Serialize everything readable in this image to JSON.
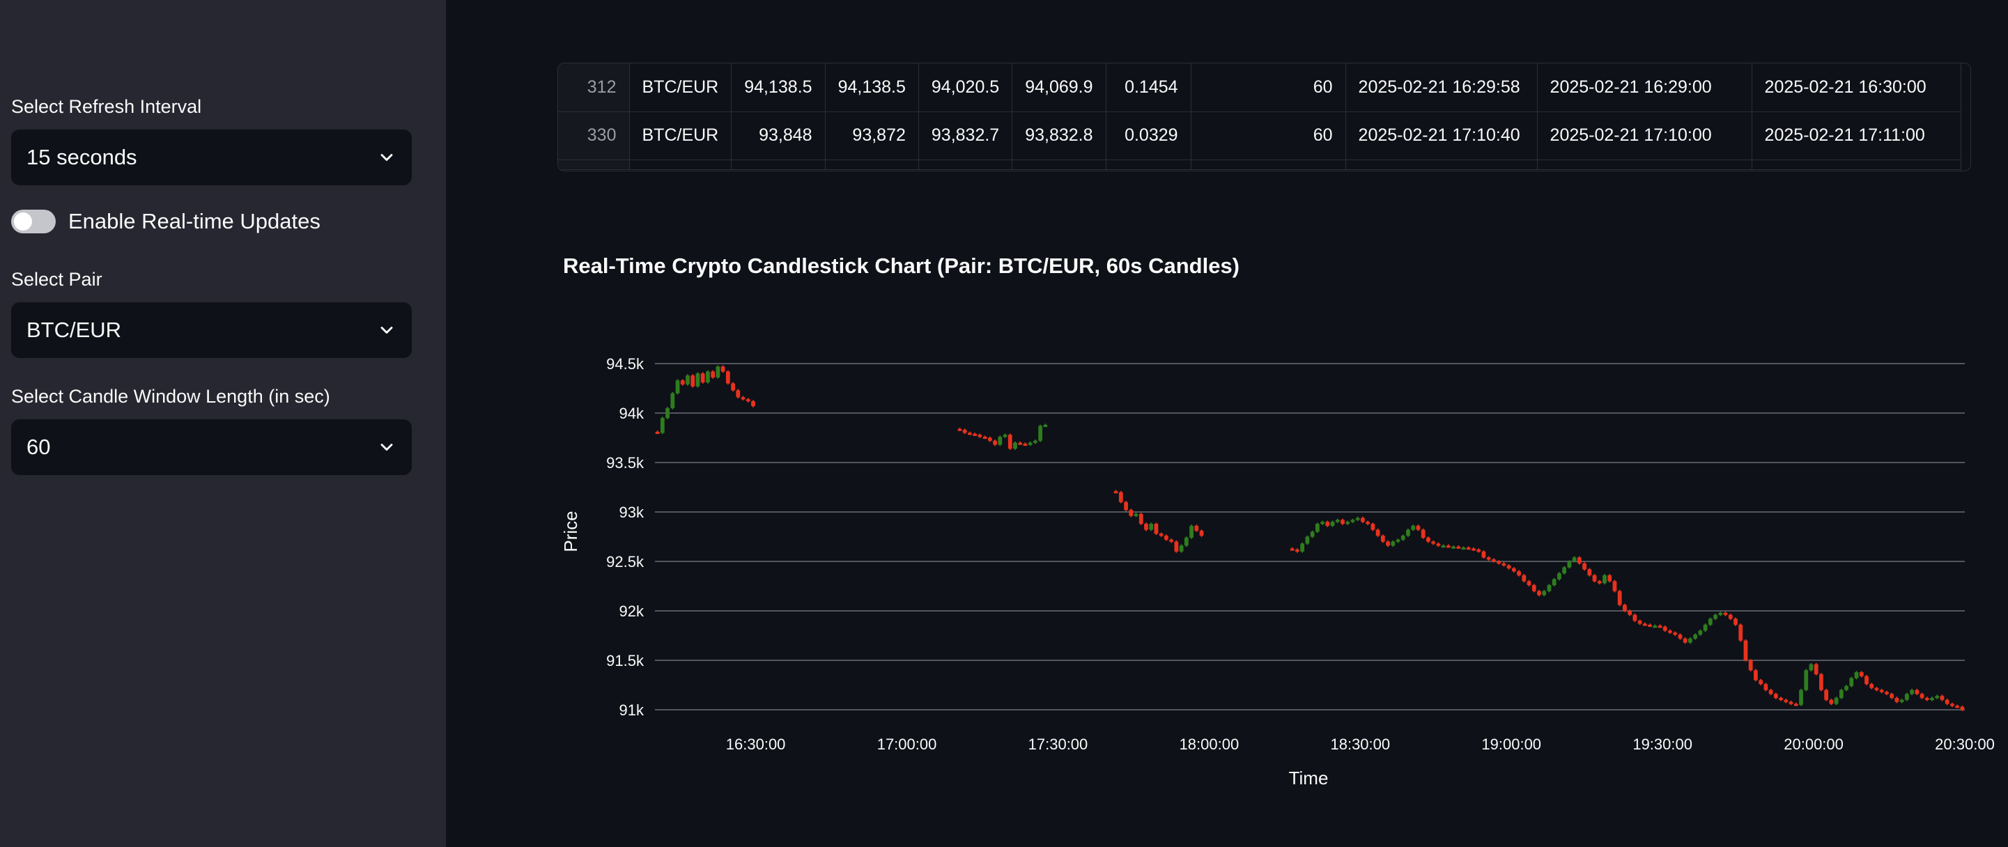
{
  "sidebar": {
    "refresh_label": "Select Refresh Interval",
    "refresh_value": "15 seconds",
    "realtime_label": "Enable Real-time Updates",
    "pair_label": "Select Pair",
    "pair_value": "BTC/EUR",
    "window_label": "Select Candle Window Length (in sec)",
    "window_value": "60"
  },
  "table": {
    "rows": [
      [
        "312",
        "BTC/EUR",
        "94,138.5",
        "94,138.5",
        "94,020.5",
        "94,069.9",
        "0.1454",
        "60",
        "2025-02-21 16:29:58",
        "2025-02-21 16:29:00",
        "2025-02-21 16:30:00"
      ],
      [
        "330",
        "BTC/EUR",
        "93,848",
        "93,872",
        "93,832.7",
        "93,832.8",
        "0.0329",
        "60",
        "2025-02-21 17:10:40",
        "2025-02-21 17:10:00",
        "2025-02-21 17:11:00"
      ]
    ]
  },
  "chart_data": {
    "type": "candlestick",
    "title": "Real-Time Crypto Candlestick Chart (Pair: BTC/EUR, 60s Candles)",
    "xlabel": "Time",
    "ylabel": "Price",
    "ylim": [
      91000,
      94500
    ],
    "yticks": [
      91000,
      91500,
      92000,
      92500,
      93000,
      93500,
      94000,
      94500
    ],
    "ytick_labels": [
      "91k",
      "91.5k",
      "92k",
      "92.5k",
      "93k",
      "93.5k",
      "94k",
      "94.5k"
    ],
    "xlim": [
      "16:10:00",
      "20:30:00"
    ],
    "xticks": [
      "16:30:00",
      "17:00:00",
      "17:30:00",
      "18:00:00",
      "18:30:00",
      "19:00:00",
      "19:30:00",
      "20:00:00",
      "20:30:00"
    ],
    "grid": true,
    "colors": {
      "up": "#2e7d1f",
      "down": "#e8321e"
    },
    "series": [
      {
        "x": [
          "16:10",
          "16:11",
          "16:12",
          "16:13",
          "16:14",
          "16:15",
          "16:16",
          "16:17",
          "16:18",
          "16:19",
          "16:20",
          "16:21",
          "16:22",
          "16:23",
          "16:24",
          "16:25",
          "16:26",
          "16:27",
          "16:28",
          "16:29"
        ],
        "close": [
          93800,
          93950,
          94050,
          94200,
          94330,
          94290,
          94380,
          94270,
          94400,
          94310,
          94420,
          94360,
          94470,
          94420,
          94300,
          94230,
          94160,
          94140,
          94120,
          94070
        ]
      },
      {
        "x": [
          "17:10",
          "17:11",
          "17:12",
          "17:13",
          "17:14",
          "17:15",
          "17:16",
          "17:17",
          "17:18",
          "17:19",
          "17:20",
          "17:21",
          "17:22",
          "17:23",
          "17:24",
          "17:25",
          "17:26",
          "17:27"
        ],
        "close": [
          93830,
          93800,
          93790,
          93780,
          93760,
          93750,
          93720,
          93680,
          93760,
          93780,
          93640,
          93700,
          93690,
          93680,
          93700,
          93720,
          93870,
          93880
        ]
      },
      {
        "x": [
          "17:41",
          "17:42",
          "17:43",
          "17:44",
          "17:45",
          "17:46",
          "17:47",
          "17:48",
          "17:49",
          "17:50",
          "17:51",
          "17:52",
          "17:53",
          "17:54",
          "17:55",
          "17:56",
          "17:57",
          "17:58"
        ],
        "close": [
          93200,
          93100,
          93020,
          92960,
          92980,
          92880,
          92820,
          92880,
          92780,
          92760,
          92720,
          92700,
          92600,
          92660,
          92740,
          92860,
          92810,
          92760
        ]
      },
      {
        "x": [
          "18:16",
          "18:17",
          "18:18",
          "18:19",
          "18:20",
          "18:21",
          "18:22",
          "18:23",
          "18:24",
          "18:25",
          "18:26",
          "18:27",
          "18:28",
          "18:29",
          "18:30",
          "18:31",
          "18:32",
          "18:33",
          "18:34",
          "18:35",
          "18:36",
          "18:37",
          "18:38",
          "18:39",
          "18:40",
          "18:41",
          "18:42",
          "18:43",
          "18:44",
          "18:45",
          "18:46",
          "18:47",
          "18:48",
          "18:49",
          "18:50",
          "18:51",
          "18:52",
          "18:53",
          "18:54",
          "18:55",
          "18:56",
          "18:57",
          "18:58",
          "18:59",
          "19:00",
          "19:01",
          "19:02",
          "19:03",
          "19:04",
          "19:05",
          "19:06",
          "19:07",
          "19:08",
          "19:09",
          "19:10",
          "19:11",
          "19:12",
          "19:13",
          "19:14",
          "19:15",
          "19:16",
          "19:17",
          "19:18",
          "19:19",
          "19:20",
          "19:21",
          "19:22",
          "19:23",
          "19:24",
          "19:25",
          "19:26",
          "19:27",
          "19:28",
          "19:29",
          "19:30",
          "19:31",
          "19:32",
          "19:33",
          "19:34",
          "19:35",
          "19:36",
          "19:37",
          "19:38",
          "19:39",
          "19:40",
          "19:41",
          "19:42",
          "19:43",
          "19:44",
          "19:45",
          "19:46",
          "19:47",
          "19:48",
          "19:49",
          "19:50",
          "19:51",
          "19:52",
          "19:53",
          "19:54",
          "19:55",
          "19:56",
          "19:57",
          "19:58",
          "19:59",
          "20:00",
          "20:01",
          "20:02",
          "20:03",
          "20:04",
          "20:05",
          "20:06",
          "20:07",
          "20:08",
          "20:09",
          "20:10",
          "20:11",
          "20:12",
          "20:13",
          "20:14",
          "20:15",
          "20:16",
          "20:17",
          "20:18",
          "20:19",
          "20:20",
          "20:21",
          "20:22",
          "20:23",
          "20:24",
          "20:25",
          "20:26",
          "20:27",
          "20:28",
          "20:29"
        ],
        "close": [
          92620,
          92600,
          92680,
          92750,
          92800,
          92880,
          92900,
          92860,
          92900,
          92920,
          92880,
          92900,
          92920,
          92940,
          92900,
          92880,
          92820,
          92760,
          92700,
          92660,
          92700,
          92720,
          92760,
          92820,
          92860,
          92820,
          92740,
          92700,
          92680,
          92660,
          92660,
          92650,
          92650,
          92640,
          92640,
          92630,
          92620,
          92600,
          92540,
          92520,
          92500,
          92480,
          92460,
          92430,
          92400,
          92360,
          92300,
          92260,
          92200,
          92160,
          92200,
          92260,
          92320,
          92380,
          92440,
          92500,
          92540,
          92480,
          92420,
          92360,
          92300,
          92280,
          92360,
          92300,
          92200,
          92060,
          92000,
          91960,
          91900,
          91870,
          91860,
          91850,
          91850,
          91840,
          91800,
          91780,
          91760,
          91720,
          91680,
          91720,
          91760,
          91800,
          91860,
          91920,
          91960,
          91980,
          91960,
          91920,
          91860,
          91700,
          91500,
          91400,
          91300,
          91260,
          91200,
          91160,
          91120,
          91100,
          91080,
          91060,
          91050,
          91200,
          91400,
          91460,
          91360,
          91200,
          91100,
          91060,
          91120,
          91200,
          91240,
          91320,
          91380,
          91340,
          91260,
          91220,
          91200,
          91180,
          91160,
          91120,
          91080,
          91100,
          91160,
          91200,
          91160,
          91120,
          91100,
          91120,
          91140,
          91100,
          91060,
          91040,
          91030,
          91000
        ]
      }
    ]
  }
}
